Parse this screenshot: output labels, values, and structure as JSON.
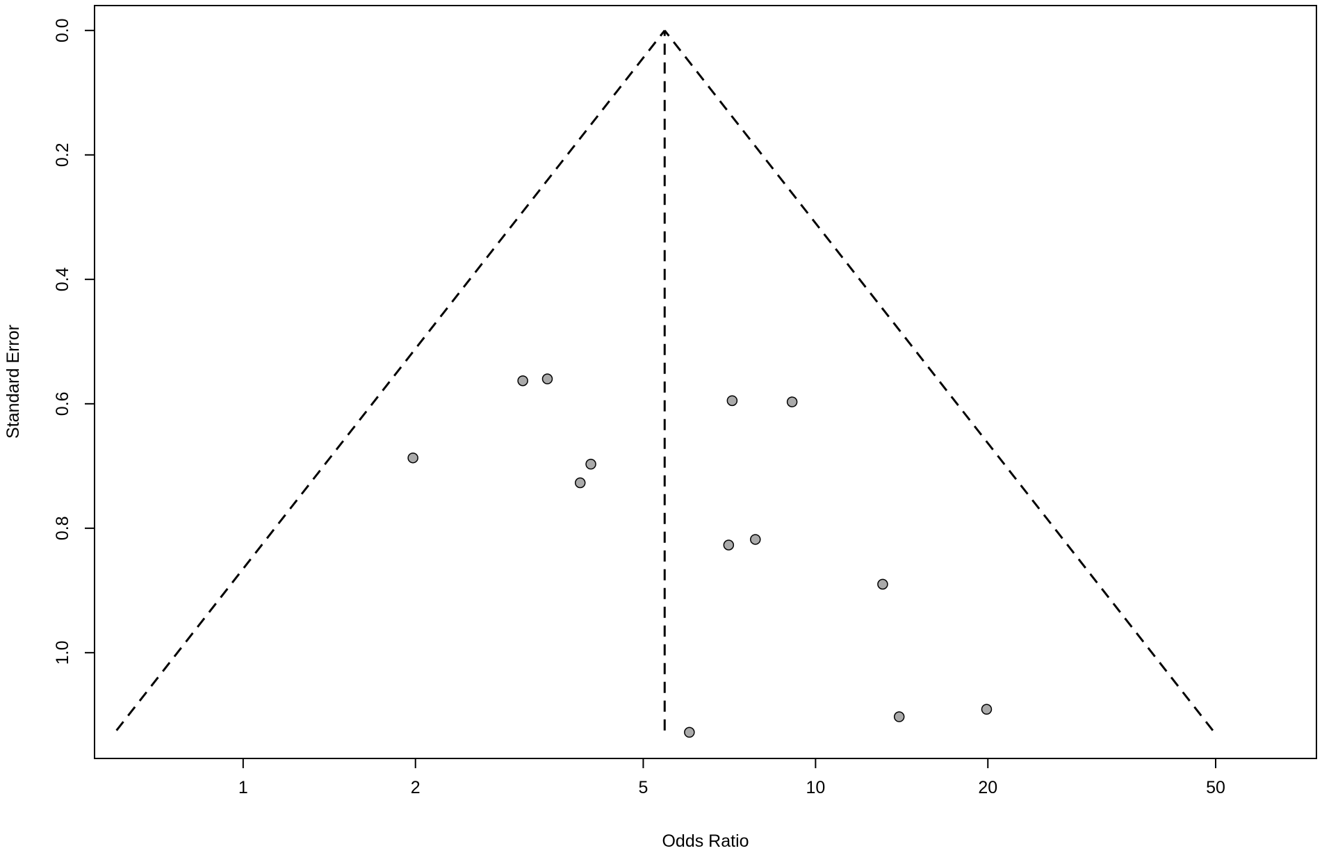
{
  "chart_data": {
    "type": "scatter",
    "title": "",
    "xlabel": "Odds Ratio",
    "ylabel": "Standard Error",
    "x_scale": "log",
    "x_ticks": [
      1,
      2,
      5,
      10,
      20,
      50
    ],
    "x_tick_labels": [
      "1",
      "2",
      "5",
      "10",
      "20",
      "50"
    ],
    "xlim": [
      0.55,
      75
    ],
    "y_ticks": [
      0.0,
      0.2,
      0.4,
      0.6,
      0.8,
      1.0
    ],
    "y_tick_labels": [
      "0.0",
      "0.2",
      "0.4",
      "0.6",
      "0.8",
      "1.0"
    ],
    "ylim": [
      1.17,
      -0.04
    ],
    "y_inverted": true,
    "grid": false,
    "legend": "none",
    "pooled_or": 5.45,
    "funnel_se_max": 1.125,
    "points": [
      {
        "x": 1.98,
        "y": 0.687
      },
      {
        "x": 3.08,
        "y": 0.563
      },
      {
        "x": 3.4,
        "y": 0.56
      },
      {
        "x": 3.88,
        "y": 0.727
      },
      {
        "x": 4.05,
        "y": 0.697
      },
      {
        "x": 6.02,
        "y": 1.128
      },
      {
        "x": 7.05,
        "y": 0.827
      },
      {
        "x": 7.15,
        "y": 0.595
      },
      {
        "x": 7.85,
        "y": 0.818
      },
      {
        "x": 9.1,
        "y": 0.597
      },
      {
        "x": 13.1,
        "y": 0.89
      },
      {
        "x": 14.0,
        "y": 1.103
      },
      {
        "x": 19.9,
        "y": 1.091
      }
    ],
    "colors": {
      "point_fill": "#aaaaaa",
      "point_stroke": "#000000",
      "line": "#000000"
    }
  }
}
